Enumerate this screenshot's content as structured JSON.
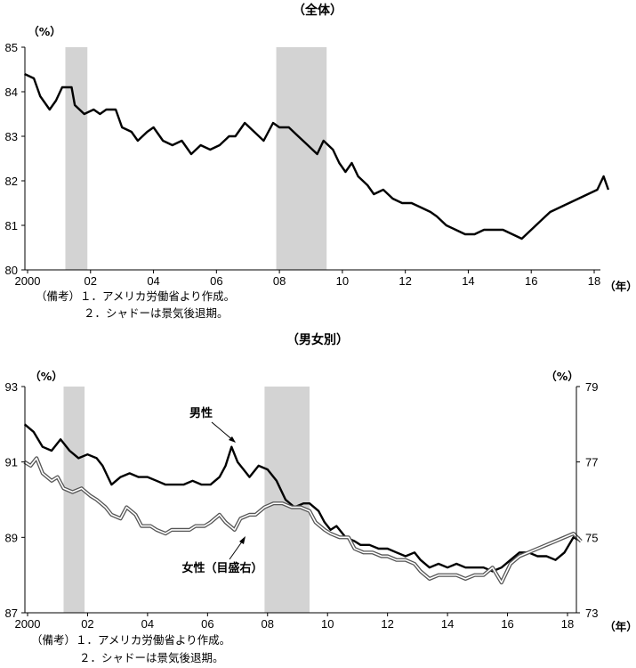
{
  "chart_data": [
    {
      "type": "line",
      "title": "（全体）",
      "y_unit": "（%）",
      "x_unit": "（年）",
      "ylim": [
        80,
        85
      ],
      "y_ticks": [
        "80",
        "81",
        "82",
        "83",
        "84",
        "85"
      ],
      "x_ticks": [
        {
          "year": 2000,
          "label": "2000"
        },
        {
          "year": 2002,
          "label": "02"
        },
        {
          "year": 2004,
          "label": "04"
        },
        {
          "year": 2006,
          "label": "06"
        },
        {
          "year": 2008,
          "label": "08"
        },
        {
          "year": 2010,
          "label": "10"
        },
        {
          "year": 2012,
          "label": "12"
        },
        {
          "year": 2014,
          "label": "14"
        },
        {
          "year": 2016,
          "label": "16"
        },
        {
          "year": 2018,
          "label": "18"
        }
      ],
      "recessions": [
        [
          2001.2,
          2001.9
        ],
        [
          2007.9,
          2009.5
        ]
      ],
      "series": [
        {
          "color": "#000000",
          "points": [
            [
              1999.9,
              84.4
            ],
            [
              2000.2,
              84.3
            ],
            [
              2000.4,
              83.9
            ],
            [
              2000.7,
              83.6
            ],
            [
              2000.9,
              83.8
            ],
            [
              2001.1,
              84.1
            ],
            [
              2001.4,
              84.1
            ],
            [
              2001.5,
              83.7
            ],
            [
              2001.8,
              83.5
            ],
            [
              2002.1,
              83.6
            ],
            [
              2002.3,
              83.5
            ],
            [
              2002.5,
              83.6
            ],
            [
              2002.8,
              83.6
            ],
            [
              2003.0,
              83.2
            ],
            [
              2003.3,
              83.1
            ],
            [
              2003.5,
              82.9
            ],
            [
              2003.8,
              83.1
            ],
            [
              2004.0,
              83.2
            ],
            [
              2004.3,
              82.9
            ],
            [
              2004.6,
              82.8
            ],
            [
              2004.9,
              82.9
            ],
            [
              2005.2,
              82.6
            ],
            [
              2005.5,
              82.8
            ],
            [
              2005.8,
              82.7
            ],
            [
              2006.1,
              82.8
            ],
            [
              2006.4,
              83.0
            ],
            [
              2006.6,
              83.0
            ],
            [
              2006.9,
              83.3
            ],
            [
              2007.2,
              83.1
            ],
            [
              2007.5,
              82.9
            ],
            [
              2007.8,
              83.3
            ],
            [
              2008.0,
              83.2
            ],
            [
              2008.3,
              83.2
            ],
            [
              2008.6,
              83.0
            ],
            [
              2008.9,
              82.8
            ],
            [
              2009.2,
              82.6
            ],
            [
              2009.4,
              82.9
            ],
            [
              2009.7,
              82.7
            ],
            [
              2009.9,
              82.4
            ],
            [
              2010.1,
              82.2
            ],
            [
              2010.3,
              82.4
            ],
            [
              2010.5,
              82.1
            ],
            [
              2010.8,
              81.9
            ],
            [
              2011.0,
              81.7
            ],
            [
              2011.3,
              81.8
            ],
            [
              2011.6,
              81.6
            ],
            [
              2011.9,
              81.5
            ],
            [
              2012.2,
              81.5
            ],
            [
              2012.5,
              81.4
            ],
            [
              2012.8,
              81.3
            ],
            [
              2013.0,
              81.2
            ],
            [
              2013.3,
              81.0
            ],
            [
              2013.6,
              80.9
            ],
            [
              2013.9,
              80.8
            ],
            [
              2014.2,
              80.8
            ],
            [
              2014.5,
              80.9
            ],
            [
              2014.8,
              80.9
            ],
            [
              2015.1,
              80.9
            ],
            [
              2015.4,
              80.8
            ],
            [
              2015.7,
              80.7
            ],
            [
              2016.0,
              80.9
            ],
            [
              2016.3,
              81.1
            ],
            [
              2016.6,
              81.3
            ],
            [
              2016.9,
              81.4
            ],
            [
              2017.2,
              81.5
            ],
            [
              2017.5,
              81.6
            ],
            [
              2017.8,
              81.7
            ],
            [
              2018.1,
              81.8
            ],
            [
              2018.3,
              82.1
            ],
            [
              2018.45,
              81.8
            ]
          ]
        }
      ],
      "notes": [
        "（備考）１．アメリカ労働省より作成。",
        "２．シャドーは景気後退期。"
      ]
    },
    {
      "type": "line",
      "title": "（男女別）",
      "y_unit_left": "（%）",
      "y_unit_right": "（%）",
      "x_unit": "（年）",
      "ylim_left": [
        87,
        93
      ],
      "ylim_right": [
        73,
        79
      ],
      "y_ticks_left": [
        "87",
        "89",
        "91",
        "93"
      ],
      "y_ticks_right": [
        "73",
        "75",
        "77",
        "79"
      ],
      "x_ticks": [
        {
          "year": 2000,
          "label": "2000"
        },
        {
          "year": 2002,
          "label": "02"
        },
        {
          "year": 2004,
          "label": "04"
        },
        {
          "year": 2006,
          "label": "06"
        },
        {
          "year": 2008,
          "label": "08"
        },
        {
          "year": 2010,
          "label": "10"
        },
        {
          "year": 2012,
          "label": "12"
        },
        {
          "year": 2014,
          "label": "14"
        },
        {
          "year": 2016,
          "label": "16"
        },
        {
          "year": 2018,
          "label": "18"
        }
      ],
      "recessions": [
        [
          2001.2,
          2001.9
        ],
        [
          2007.9,
          2009.4
        ]
      ],
      "series": [
        {
          "name": "男性",
          "axis": "left",
          "color": "#000000",
          "points": [
            [
              1999.9,
              92.0
            ],
            [
              2000.2,
              91.8
            ],
            [
              2000.5,
              91.4
            ],
            [
              2000.8,
              91.3
            ],
            [
              2001.1,
              91.6
            ],
            [
              2001.4,
              91.3
            ],
            [
              2001.7,
              91.1
            ],
            [
              2002.0,
              91.2
            ],
            [
              2002.3,
              91.1
            ],
            [
              2002.5,
              90.9
            ],
            [
              2002.8,
              90.4
            ],
            [
              2003.1,
              90.6
            ],
            [
              2003.4,
              90.7
            ],
            [
              2003.7,
              90.6
            ],
            [
              2004.0,
              90.6
            ],
            [
              2004.3,
              90.5
            ],
            [
              2004.6,
              90.4
            ],
            [
              2004.9,
              90.4
            ],
            [
              2005.2,
              90.4
            ],
            [
              2005.5,
              90.5
            ],
            [
              2005.8,
              90.4
            ],
            [
              2006.1,
              90.4
            ],
            [
              2006.4,
              90.6
            ],
            [
              2006.6,
              90.9
            ],
            [
              2006.8,
              91.4
            ],
            [
              2007.0,
              91.0
            ],
            [
              2007.2,
              90.8
            ],
            [
              2007.4,
              90.6
            ],
            [
              2007.7,
              90.9
            ],
            [
              2008.0,
              90.8
            ],
            [
              2008.3,
              90.5
            ],
            [
              2008.6,
              90.0
            ],
            [
              2008.9,
              89.8
            ],
            [
              2009.2,
              89.9
            ],
            [
              2009.4,
              89.9
            ],
            [
              2009.7,
              89.7
            ],
            [
              2009.9,
              89.4
            ],
            [
              2010.1,
              89.2
            ],
            [
              2010.3,
              89.3
            ],
            [
              2010.6,
              89.0
            ],
            [
              2010.9,
              88.9
            ],
            [
              2011.1,
              88.8
            ],
            [
              2011.4,
              88.8
            ],
            [
              2011.7,
              88.7
            ],
            [
              2012.0,
              88.7
            ],
            [
              2012.3,
              88.6
            ],
            [
              2012.6,
              88.5
            ],
            [
              2012.9,
              88.6
            ],
            [
              2013.1,
              88.4
            ],
            [
              2013.4,
              88.2
            ],
            [
              2013.7,
              88.3
            ],
            [
              2014.0,
              88.2
            ],
            [
              2014.3,
              88.3
            ],
            [
              2014.6,
              88.2
            ],
            [
              2014.9,
              88.2
            ],
            [
              2015.2,
              88.2
            ],
            [
              2015.5,
              88.1
            ],
            [
              2015.8,
              88.2
            ],
            [
              2016.1,
              88.4
            ],
            [
              2016.4,
              88.6
            ],
            [
              2016.7,
              88.6
            ],
            [
              2017.0,
              88.5
            ],
            [
              2017.3,
              88.5
            ],
            [
              2017.6,
              88.4
            ],
            [
              2017.9,
              88.6
            ],
            [
              2018.2,
              89.0
            ],
            [
              2018.45,
              88.9
            ]
          ]
        },
        {
          "name": "女性（目盛右）",
          "axis": "right",
          "color": "#555555",
          "points": [
            [
              1999.9,
              77.0
            ],
            [
              2000.1,
              76.9
            ],
            [
              2000.3,
              77.1
            ],
            [
              2000.5,
              76.7
            ],
            [
              2000.8,
              76.5
            ],
            [
              2001.0,
              76.6
            ],
            [
              2001.2,
              76.3
            ],
            [
              2001.5,
              76.2
            ],
            [
              2001.8,
              76.3
            ],
            [
              2002.1,
              76.1
            ],
            [
              2002.3,
              76.0
            ],
            [
              2002.6,
              75.8
            ],
            [
              2002.8,
              75.6
            ],
            [
              2003.1,
              75.5
            ],
            [
              2003.3,
              75.8
            ],
            [
              2003.6,
              75.6
            ],
            [
              2003.8,
              75.3
            ],
            [
              2004.1,
              75.3
            ],
            [
              2004.3,
              75.2
            ],
            [
              2004.6,
              75.1
            ],
            [
              2004.8,
              75.2
            ],
            [
              2005.1,
              75.2
            ],
            [
              2005.4,
              75.2
            ],
            [
              2005.6,
              75.3
            ],
            [
              2005.9,
              75.3
            ],
            [
              2006.1,
              75.4
            ],
            [
              2006.4,
              75.6
            ],
            [
              2006.6,
              75.4
            ],
            [
              2006.9,
              75.2
            ],
            [
              2007.1,
              75.5
            ],
            [
              2007.4,
              75.6
            ],
            [
              2007.6,
              75.6
            ],
            [
              2007.9,
              75.8
            ],
            [
              2008.2,
              75.9
            ],
            [
              2008.5,
              75.9
            ],
            [
              2008.8,
              75.8
            ],
            [
              2009.1,
              75.8
            ],
            [
              2009.4,
              75.7
            ],
            [
              2009.6,
              75.4
            ],
            [
              2009.9,
              75.2
            ],
            [
              2010.1,
              75.1
            ],
            [
              2010.4,
              75.0
            ],
            [
              2010.7,
              75.0
            ],
            [
              2010.9,
              74.7
            ],
            [
              2011.2,
              74.6
            ],
            [
              2011.5,
              74.6
            ],
            [
              2011.8,
              74.5
            ],
            [
              2012.0,
              74.5
            ],
            [
              2012.3,
              74.4
            ],
            [
              2012.6,
              74.4
            ],
            [
              2012.9,
              74.3
            ],
            [
              2013.1,
              74.1
            ],
            [
              2013.4,
              73.9
            ],
            [
              2013.7,
              74.0
            ],
            [
              2014.0,
              74.0
            ],
            [
              2014.3,
              74.0
            ],
            [
              2014.6,
              73.9
            ],
            [
              2014.9,
              74.0
            ],
            [
              2015.2,
              74.0
            ],
            [
              2015.5,
              74.2
            ],
            [
              2015.8,
              73.8
            ],
            [
              2016.1,
              74.3
            ],
            [
              2016.4,
              74.5
            ],
            [
              2016.7,
              74.6
            ],
            [
              2017.0,
              74.7
            ],
            [
              2017.3,
              74.8
            ],
            [
              2017.6,
              74.9
            ],
            [
              2017.9,
              75.0
            ],
            [
              2018.2,
              75.1
            ],
            [
              2018.45,
              74.9
            ]
          ]
        }
      ],
      "annotations": [
        "男性",
        "女性（目盛右）"
      ],
      "notes": [
        "（備考）１．アメリカ労働省より作成。",
        "２．シャドーは景気後退期。"
      ]
    }
  ]
}
